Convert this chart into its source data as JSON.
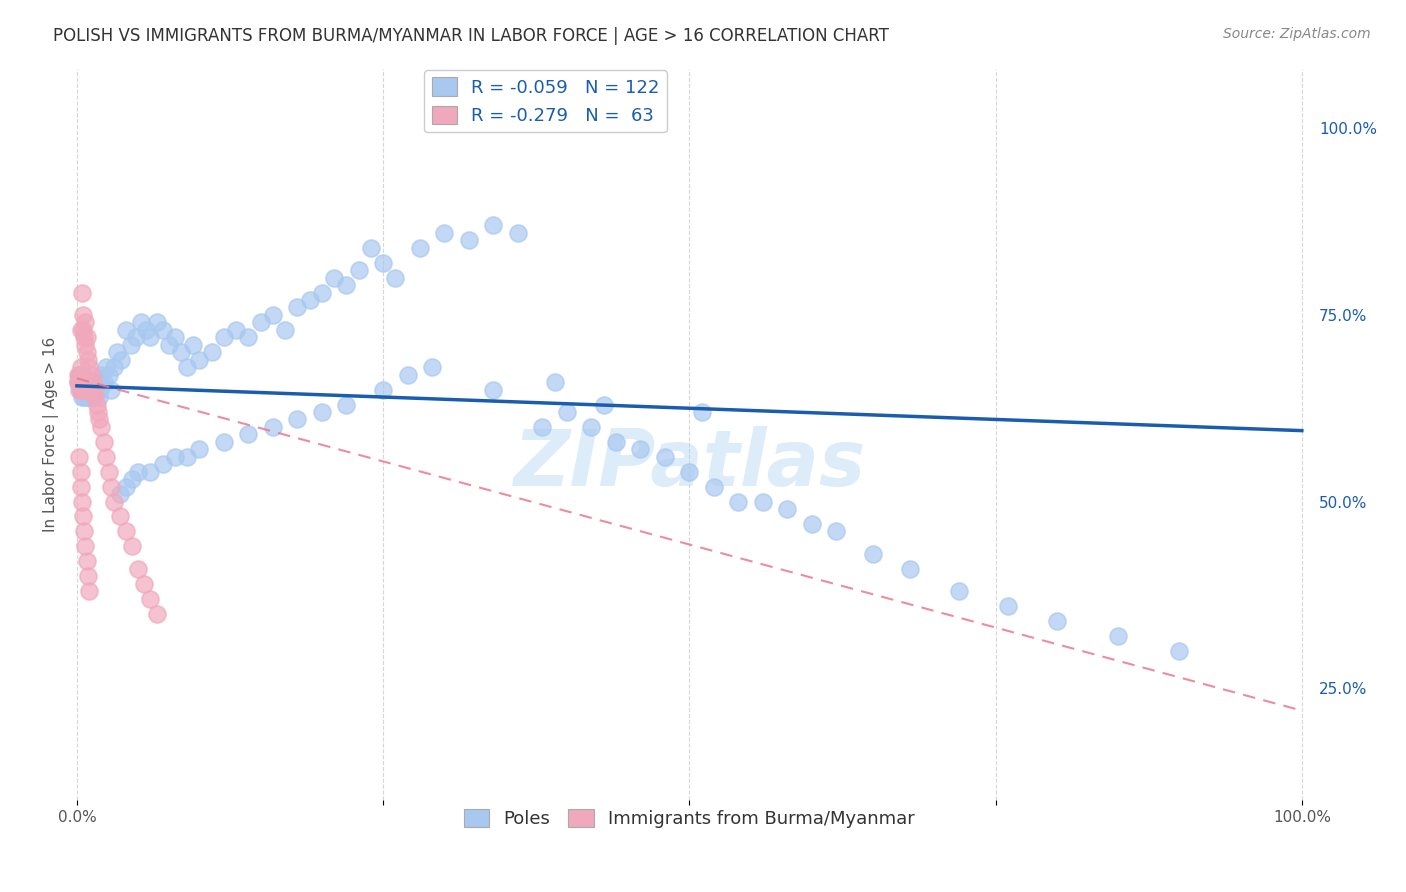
{
  "title": "POLISH VS IMMIGRANTS FROM BURMA/MYANMAR IN LABOR FORCE | AGE > 16 CORRELATION CHART",
  "source": "Source: ZipAtlas.com",
  "ylabel": "In Labor Force | Age > 16",
  "right_yticks": [
    "100.0%",
    "75.0%",
    "50.0%",
    "25.0%"
  ],
  "right_ytick_vals": [
    1.0,
    0.75,
    0.5,
    0.25
  ],
  "watermark": "ZIPatlas",
  "legend_blue_R": "R = -0.059",
  "legend_blue_N": "N = 122",
  "legend_pink_R": "R = -0.279",
  "legend_pink_N": "N =  63",
  "legend_label_blue": "Poles",
  "legend_label_pink": "Immigrants from Burma/Myanmar",
  "blue_color": "#A8C8F0",
  "pink_color": "#F0A8BC",
  "trendline_blue_color": "#1A5DAF",
  "trendline_pink_color": "#E87890",
  "blue_scatter_x": [
    0.001,
    0.002,
    0.002,
    0.003,
    0.003,
    0.003,
    0.003,
    0.004,
    0.004,
    0.004,
    0.005,
    0.005,
    0.005,
    0.006,
    0.006,
    0.006,
    0.007,
    0.007,
    0.007,
    0.008,
    0.008,
    0.008,
    0.009,
    0.009,
    0.01,
    0.01,
    0.011,
    0.011,
    0.012,
    0.012,
    0.013,
    0.014,
    0.015,
    0.016,
    0.017,
    0.018,
    0.019,
    0.02,
    0.022,
    0.024,
    0.026,
    0.028,
    0.03,
    0.033,
    0.036,
    0.04,
    0.044,
    0.048,
    0.052,
    0.056,
    0.06,
    0.065,
    0.07,
    0.075,
    0.08,
    0.085,
    0.09,
    0.095,
    0.1,
    0.11,
    0.12,
    0.13,
    0.14,
    0.15,
    0.16,
    0.17,
    0.18,
    0.19,
    0.2,
    0.21,
    0.22,
    0.23,
    0.24,
    0.25,
    0.26,
    0.28,
    0.3,
    0.32,
    0.34,
    0.36,
    0.38,
    0.4,
    0.42,
    0.44,
    0.46,
    0.48,
    0.5,
    0.52,
    0.54,
    0.56,
    0.58,
    0.6,
    0.62,
    0.65,
    0.68,
    0.72,
    0.76,
    0.8,
    0.85,
    0.9,
    0.34,
    0.43,
    0.51,
    0.39,
    0.29,
    0.27,
    0.25,
    0.22,
    0.2,
    0.18,
    0.16,
    0.14,
    0.12,
    0.1,
    0.09,
    0.08,
    0.07,
    0.06,
    0.05,
    0.045,
    0.04,
    0.035
  ],
  "blue_scatter_y": [
    0.66,
    0.66,
    0.67,
    0.65,
    0.66,
    0.67,
    0.66,
    0.64,
    0.65,
    0.66,
    0.65,
    0.66,
    0.67,
    0.64,
    0.65,
    0.66,
    0.65,
    0.66,
    0.65,
    0.64,
    0.65,
    0.66,
    0.65,
    0.64,
    0.65,
    0.66,
    0.65,
    0.64,
    0.65,
    0.64,
    0.65,
    0.66,
    0.65,
    0.66,
    0.65,
    0.64,
    0.65,
    0.67,
    0.66,
    0.68,
    0.67,
    0.65,
    0.68,
    0.7,
    0.69,
    0.73,
    0.71,
    0.72,
    0.74,
    0.73,
    0.72,
    0.74,
    0.73,
    0.71,
    0.72,
    0.7,
    0.68,
    0.71,
    0.69,
    0.7,
    0.72,
    0.73,
    0.72,
    0.74,
    0.75,
    0.73,
    0.76,
    0.77,
    0.78,
    0.8,
    0.79,
    0.81,
    0.84,
    0.82,
    0.8,
    0.84,
    0.86,
    0.85,
    0.87,
    0.86,
    0.6,
    0.62,
    0.6,
    0.58,
    0.57,
    0.56,
    0.54,
    0.52,
    0.5,
    0.5,
    0.49,
    0.47,
    0.46,
    0.43,
    0.41,
    0.38,
    0.36,
    0.34,
    0.32,
    0.3,
    0.65,
    0.63,
    0.62,
    0.66,
    0.68,
    0.67,
    0.65,
    0.63,
    0.62,
    0.61,
    0.6,
    0.59,
    0.58,
    0.57,
    0.56,
    0.56,
    0.55,
    0.54,
    0.54,
    0.53,
    0.52,
    0.51
  ],
  "pink_scatter_x": [
    0.001,
    0.001,
    0.002,
    0.002,
    0.002,
    0.002,
    0.003,
    0.003,
    0.003,
    0.003,
    0.003,
    0.004,
    0.004,
    0.004,
    0.004,
    0.005,
    0.005,
    0.005,
    0.005,
    0.006,
    0.006,
    0.006,
    0.007,
    0.007,
    0.007,
    0.008,
    0.008,
    0.008,
    0.009,
    0.009,
    0.01,
    0.01,
    0.011,
    0.012,
    0.013,
    0.014,
    0.015,
    0.016,
    0.017,
    0.018,
    0.02,
    0.022,
    0.024,
    0.026,
    0.028,
    0.03,
    0.035,
    0.04,
    0.045,
    0.05,
    0.055,
    0.06,
    0.065,
    0.002,
    0.003,
    0.003,
    0.004,
    0.005,
    0.006,
    0.007,
    0.008,
    0.009,
    0.01
  ],
  "pink_scatter_y": [
    0.66,
    0.67,
    0.65,
    0.66,
    0.67,
    0.66,
    0.65,
    0.66,
    0.67,
    0.68,
    0.73,
    0.65,
    0.66,
    0.67,
    0.78,
    0.65,
    0.66,
    0.73,
    0.75,
    0.65,
    0.66,
    0.72,
    0.65,
    0.71,
    0.74,
    0.65,
    0.7,
    0.72,
    0.65,
    0.69,
    0.65,
    0.68,
    0.66,
    0.67,
    0.66,
    0.65,
    0.64,
    0.63,
    0.62,
    0.61,
    0.6,
    0.58,
    0.56,
    0.54,
    0.52,
    0.5,
    0.48,
    0.46,
    0.44,
    0.41,
    0.39,
    0.37,
    0.35,
    0.56,
    0.54,
    0.52,
    0.5,
    0.48,
    0.46,
    0.44,
    0.42,
    0.4,
    0.38
  ],
  "blue_trend_x": [
    0.0,
    1.0
  ],
  "blue_trend_y": [
    0.655,
    0.595
  ],
  "pink_trend_x": [
    0.0,
    1.0
  ],
  "pink_trend_y": [
    0.665,
    0.22
  ],
  "xlim": [
    -0.01,
    1.01
  ],
  "ylim": [
    0.1,
    1.08
  ],
  "xtick_vals": [
    0.0,
    0.25,
    0.5,
    0.75,
    1.0
  ],
  "xtick_labels": [
    "0.0%",
    "",
    "",
    "",
    "100.0%"
  ],
  "title_fontsize": 12,
  "source_fontsize": 10,
  "axis_tick_fontsize": 11,
  "legend_fontsize": 13,
  "ylabel_fontsize": 11
}
